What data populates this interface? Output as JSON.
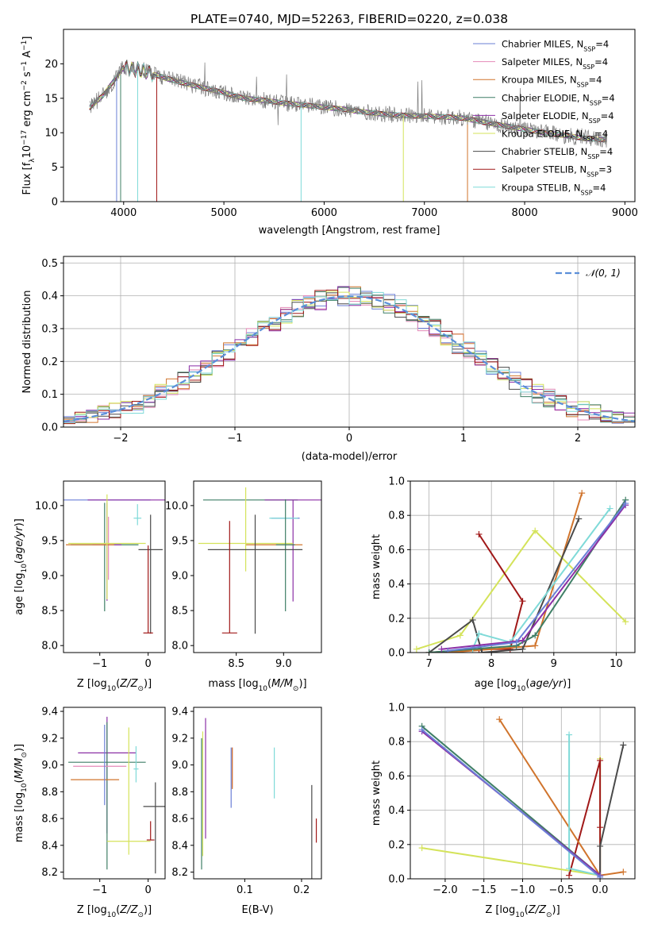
{
  "chart_data": [
    {
      "id": "spectrum",
      "type": "line",
      "title": "PLATE=0740, MJD=52263, FIBERID=0220, z=0.038",
      "xlabel": "wavelength [Angstrom, rest frame]",
      "ylabel": "Flux [f_λ10^-17 erg cm^-2 s^-1 A^-1]",
      "xlim": [
        3400,
        9100
      ],
      "ylim": [
        0,
        25
      ],
      "xticks": [
        4000,
        5000,
        6000,
        7000,
        8000,
        9000
      ],
      "yticks": [
        0,
        5,
        10,
        15,
        20
      ],
      "grid": false,
      "legend_position": "top-right",
      "continuum": {
        "x": [
          3650,
          3800,
          4000,
          4200,
          4400,
          4600,
          4800,
          5000,
          5200,
          5400,
          5600,
          5800,
          6000,
          6200,
          6400,
          6600,
          6800,
          7000,
          7200,
          7400,
          7600,
          7800,
          8000,
          8200,
          8400,
          8600,
          8800
        ],
        "y": [
          13.5,
          15.5,
          19.5,
          19.0,
          18.0,
          17.2,
          16.5,
          15.8,
          15.0,
          14.7,
          14.3,
          14.0,
          13.7,
          13.4,
          13.0,
          12.7,
          12.5,
          12.4,
          12.3,
          12.1,
          11.5,
          11.0,
          10.5,
          10.0,
          9.6,
          9.2,
          9.0
        ]
      },
      "series": [
        {
          "name": "Chabrier MILES",
          "nssp": "4",
          "color": "#6a7fd6"
        },
        {
          "name": "Salpeter MILES",
          "nssp": "4",
          "color": "#e48ab8"
        },
        {
          "name": "Kroupa MILES",
          "nssp": "4",
          "color": "#d0742c"
        },
        {
          "name": "Chabrier ELODIE",
          "nssp": "4",
          "color": "#3f7f66"
        },
        {
          "name": "Salpeter ELODIE",
          "nssp": "4",
          "color": "#8b2fa6"
        },
        {
          "name": "Kroupa ELODIE",
          "nssp": "4",
          "color": "#d4e35a"
        },
        {
          "name": "Chabrier STELIB",
          "nssp": "4",
          "color": "#4a4a4a"
        },
        {
          "name": "Salpeter STELIB",
          "nssp": "3",
          "color": "#a01818"
        },
        {
          "name": "Kroupa STELIB",
          "nssp": "4",
          "color": "#7fdad8"
        }
      ]
    },
    {
      "id": "residuals",
      "type": "line",
      "xlabel": "(data-model)/error",
      "ylabel": "Normed distribution",
      "xlim": [
        -2.5,
        2.5
      ],
      "ylim": [
        0,
        0.52
      ],
      "xticks": [
        -2,
        -1,
        0,
        1,
        2
      ],
      "yticks": [
        0.0,
        0.1,
        0.2,
        0.3,
        0.4,
        0.5
      ],
      "grid": true,
      "legend_position": "top-right",
      "legend": "𝒩(0, 1)",
      "normal_color": "#5b8fd9",
      "bin_width": 0.1
    },
    {
      "id": "age_vs_Z",
      "type": "scatter",
      "xlabel": "Z [log10(Z/Z⊙)]",
      "ylabel": "age [log10(age/yr)]",
      "xlim": [
        -1.75,
        0.35
      ],
      "ylim": [
        7.9,
        10.35
      ],
      "xticks": [
        -1,
        0
      ],
      "yticks": [
        8.0,
        8.5,
        9.0,
        9.5,
        10.0
      ],
      "points": [
        {
          "s": 0,
          "x": -0.85,
          "y": 10.08,
          "xerr": 0.9,
          "yerr": [
            0.0,
            0.0
          ]
        },
        {
          "s": 4,
          "x": -0.35,
          "y": 10.08,
          "xerr": 0.9,
          "yerr": [
            0.0,
            0.0
          ]
        },
        {
          "s": 3,
          "x": -0.9,
          "y": 9.44,
          "xerr": 0.7,
          "yerr": [
            0.95,
            0.6
          ]
        },
        {
          "s": 4,
          "x": -0.85,
          "y": 9.44,
          "xerr": 0.3,
          "yerr": [
            0.8,
            0.6
          ]
        },
        {
          "s": 1,
          "x": -0.82,
          "y": 9.44,
          "xerr": 0.1,
          "yerr": [
            0.5,
            0.4
          ]
        },
        {
          "s": 2,
          "x": -1.2,
          "y": 9.44,
          "xerr": 0.5,
          "yerr": [
            0.0,
            0.0
          ]
        },
        {
          "s": 8,
          "x": -0.22,
          "y": 9.82,
          "xerr": 0.08,
          "yerr": [
            0.1,
            0.2
          ]
        },
        {
          "s": 5,
          "x": -0.85,
          "y": 9.46,
          "xerr": 0.8,
          "yerr": [
            0.8,
            0.7
          ]
        },
        {
          "s": 6,
          "x": 0.05,
          "y": 9.37,
          "xerr": 0.25,
          "yerr": [
            1.2,
            0.5
          ]
        },
        {
          "s": 7,
          "x": 0.0,
          "y": 8.18,
          "xerr": 0.1,
          "yerr": [
            0.0,
            1.25
          ]
        }
      ]
    },
    {
      "id": "age_vs_mass",
      "type": "scatter",
      "xlabel": "mass [log10(M/M⊙)]",
      "ylabel": "",
      "xlim": [
        8.05,
        9.4
      ],
      "ylim": [
        7.9,
        10.35
      ],
      "xticks": [
        8.5,
        9.0
      ],
      "yticks": [
        8.0,
        8.5,
        9.0,
        9.5,
        10.0
      ],
      "points": [
        {
          "s": 3,
          "x": 8.65,
          "y": 10.08,
          "xerr": 0.5,
          "yerr": [
            0.0,
            0.0
          ]
        },
        {
          "s": 4,
          "x": 9.1,
          "y": 10.08,
          "xerr": 0.3,
          "yerr": [
            1.45,
            0.0
          ]
        },
        {
          "s": 0,
          "x": 9.02,
          "y": 9.82,
          "xerr": 0.15,
          "yerr": [
            0.0,
            0.0
          ]
        },
        {
          "s": 8,
          "x": 9.0,
          "y": 9.82,
          "xerr": 0.15,
          "yerr": [
            0.0,
            0.0
          ]
        },
        {
          "s": 2,
          "x": 8.9,
          "y": 9.44,
          "xerr": 0.3,
          "yerr": [
            0.0,
            0.0
          ]
        },
        {
          "s": 5,
          "x": 8.6,
          "y": 9.46,
          "xerr": 0.5,
          "yerr": [
            0.4,
            0.8
          ]
        },
        {
          "s": 3,
          "x": 9.02,
          "y": 9.44,
          "xerr": 0.1,
          "yerr": [
            0.95,
            0.65
          ]
        },
        {
          "s": 6,
          "x": 8.7,
          "y": 9.37,
          "xerr": 0.5,
          "yerr": [
            1.2,
            0.5
          ]
        },
        {
          "s": 7,
          "x": 8.43,
          "y": 8.18,
          "xerr": 0.08,
          "yerr": [
            0.0,
            1.6
          ]
        }
      ]
    },
    {
      "id": "weight_vs_age",
      "type": "line",
      "xlabel": "age [log10(age/yr)]",
      "ylabel": "mass weight",
      "xlim": [
        6.7,
        10.3
      ],
      "ylim": [
        0.0,
        1.0
      ],
      "xticks": [
        7,
        8,
        9,
        10
      ],
      "yticks": [
        0.0,
        0.2,
        0.4,
        0.6,
        0.8,
        1.0
      ],
      "grid": true,
      "series": [
        {
          "s": 5,
          "x": [
            6.8,
            7.5,
            8.7,
            10.15
          ],
          "y": [
            0.02,
            0.1,
            0.71,
            0.18
          ]
        },
        {
          "s": 7,
          "x": [
            7.0,
            7.8,
            8.3,
            8.5,
            7.8
          ],
          "y": [
            0.0,
            0.02,
            0.02,
            0.3,
            0.69
          ]
        },
        {
          "s": 2,
          "x": [
            7.3,
            8.0,
            8.7,
            9.45
          ],
          "y": [
            0.0,
            0.02,
            0.04,
            0.93
          ]
        },
        {
          "s": 6,
          "x": [
            7.0,
            7.7,
            7.85,
            8.5,
            9.4
          ],
          "y": [
            0.0,
            0.19,
            0.0,
            0.02,
            0.78
          ]
        },
        {
          "s": 8,
          "x": [
            7.7,
            7.8,
            8.3,
            9.9
          ],
          "y": [
            0.02,
            0.11,
            0.06,
            0.84
          ]
        },
        {
          "s": 3,
          "x": [
            7.0,
            8.4,
            8.7,
            10.15
          ],
          "y": [
            0.0,
            0.04,
            0.1,
            0.89
          ]
        },
        {
          "s": 4,
          "x": [
            7.2,
            8.5,
            10.15
          ],
          "y": [
            0.02,
            0.07,
            0.86
          ]
        },
        {
          "s": 0,
          "x": [
            7.3,
            8.4,
            10.15
          ],
          "y": [
            0.01,
            0.06,
            0.87
          ]
        }
      ]
    },
    {
      "id": "mass_vs_Z",
      "type": "scatter",
      "xlabel": "Z [log10(Z/Z⊙)]",
      "ylabel": "mass [log10(M/M⊙)]",
      "xlim": [
        -1.75,
        0.35
      ],
      "ylim": [
        8.15,
        9.43
      ],
      "xticks": [
        -1,
        0
      ],
      "yticks": [
        8.2,
        8.4,
        8.6,
        8.8,
        9.0,
        9.2,
        9.4
      ],
      "points": [
        {
          "s": 4,
          "x": -0.85,
          "y": 9.09,
          "xerr": 0.6,
          "yerr": [
            0.6,
            0.27
          ]
        },
        {
          "s": 3,
          "x": -0.85,
          "y": 9.02,
          "xerr": 0.8,
          "yerr": [
            0.8,
            0.3
          ]
        },
        {
          "s": 1,
          "x": -1.0,
          "y": 8.99,
          "xerr": 0.55,
          "yerr": [
            0.0,
            0.0
          ]
        },
        {
          "s": 8,
          "x": -0.25,
          "y": 8.97,
          "xerr": 0.05,
          "yerr": [
            0.1,
            0.17
          ]
        },
        {
          "s": 2,
          "x": -1.1,
          "y": 8.89,
          "xerr": 0.5,
          "yerr": [
            0.0,
            0.0
          ]
        },
        {
          "s": 5,
          "x": -0.4,
          "y": 8.43,
          "xerr": 0.45,
          "yerr": [
            0.1,
            0.85
          ]
        },
        {
          "s": 6,
          "x": 0.15,
          "y": 8.69,
          "xerr": 0.25,
          "yerr": [
            0.5,
            0.18
          ]
        },
        {
          "s": 7,
          "x": 0.05,
          "y": 8.44,
          "xerr": 0.08,
          "yerr": [
            0.0,
            0.14
          ]
        },
        {
          "s": 0,
          "x": -0.9,
          "y": 9.0,
          "xerr": 0.0,
          "yerr": [
            0.3,
            0.3
          ]
        }
      ]
    },
    {
      "id": "mass_vs_ebv",
      "type": "scatter",
      "xlabel": "E(B-V)",
      "ylabel": "",
      "xlim": [
        0.01,
        0.235
      ],
      "ylim": [
        8.15,
        9.43
      ],
      "xticks": [
        0.1,
        0.2
      ],
      "yticks": [
        8.2,
        8.4,
        8.6,
        8.8,
        9.0,
        9.2,
        9.4
      ],
      "points": [
        {
          "s": 5,
          "x": 0.026,
          "y": 8.7,
          "yerr": [
            0.38,
            0.55
          ]
        },
        {
          "s": 3,
          "x": 0.024,
          "y": 8.7,
          "yerr": [
            0.48,
            0.5
          ]
        },
        {
          "s": 4,
          "x": 0.031,
          "y": 8.9,
          "yerr": [
            0.45,
            0.45
          ]
        },
        {
          "s": 0,
          "x": 0.076,
          "y": 8.93,
          "yerr": [
            0.25,
            0.2
          ]
        },
        {
          "s": 1,
          "x": 0.078,
          "y": 8.98,
          "yerr": [
            0.15,
            0.15
          ]
        },
        {
          "s": 2,
          "x": 0.078,
          "y": 8.97,
          "yerr": [
            0.15,
            0.16
          ]
        },
        {
          "s": 8,
          "x": 0.152,
          "y": 8.95,
          "yerr": [
            0.2,
            0.18
          ]
        },
        {
          "s": 6,
          "x": 0.218,
          "y": 8.55,
          "yerr": [
            0.4,
            0.3
          ]
        },
        {
          "s": 7,
          "x": 0.226,
          "y": 8.52,
          "yerr": [
            0.1,
            0.08
          ]
        }
      ]
    },
    {
      "id": "weight_vs_Z",
      "type": "line",
      "xlabel": "Z [log10(Z/Z⊙)]",
      "ylabel": "mass weight",
      "xlim": [
        -2.45,
        0.45
      ],
      "ylim": [
        0.0,
        1.0
      ],
      "xticks": [
        -2.0,
        -1.5,
        -1.0,
        -0.5,
        0.0
      ],
      "yticks": [
        0.0,
        0.2,
        0.4,
        0.6,
        0.8,
        1.0
      ],
      "grid": true,
      "series": [
        {
          "s": 5,
          "x": [
            -2.3,
            0.0,
            0.0
          ],
          "y": [
            0.18,
            0.02,
            0.7
          ]
        },
        {
          "s": 7,
          "x": [
            -0.4,
            0.0,
            0.0,
            0.0
          ],
          "y": [
            0.02,
            0.69,
            0.3,
            0.02
          ]
        },
        {
          "s": 2,
          "x": [
            -1.3,
            0.0,
            0.3
          ],
          "y": [
            0.93,
            0.02,
            0.04
          ]
        },
        {
          "s": 6,
          "x": [
            0.0,
            0.0,
            0.3
          ],
          "y": [
            0.02,
            0.19,
            0.78
          ]
        },
        {
          "s": 8,
          "x": [
            -0.4,
            -0.4,
            0.0
          ],
          "y": [
            0.84,
            0.06,
            0.02
          ]
        },
        {
          "s": 3,
          "x": [
            -2.3,
            0.0
          ],
          "y": [
            0.89,
            0.02
          ]
        },
        {
          "s": 4,
          "x": [
            -2.3,
            0.0
          ],
          "y": [
            0.86,
            0.02
          ]
        },
        {
          "s": 0,
          "x": [
            -2.3,
            0.0
          ],
          "y": [
            0.87,
            0.01
          ]
        }
      ]
    }
  ]
}
